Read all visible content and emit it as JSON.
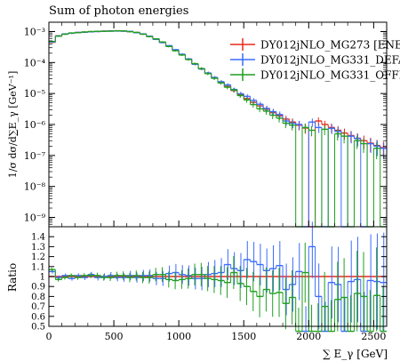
{
  "chart_data": {
    "type": "line",
    "title": "Sum of photon energies",
    "xlabel": "∑ E_γ [GeV]",
    "ylabel_main": "1/σ dσ/d∑E_γ [GeV⁻¹]",
    "ylabel_ratio": "Ratio",
    "x_range": [
      0,
      2600
    ],
    "y_range_main": [
      5e-10,
      0.002
    ],
    "y_scale_main": "log",
    "y_range_ratio": [
      0.5,
      1.5
    ],
    "x_ticks": [
      "0",
      "500",
      "1000",
      "1500",
      "2000",
      "2500"
    ],
    "y_ticks_main": [
      "10⁻³",
      "10⁻⁴",
      "10⁻⁵",
      "10⁻⁶",
      "10⁻⁷",
      "10⁻⁸",
      "10⁻⁹"
    ],
    "y_ticks_ratio": [
      "0.5",
      "0.6",
      "0.7",
      "0.8",
      "0.9",
      "1",
      "1.1",
      "1.2",
      "1.3",
      "1.4"
    ],
    "legend_position": "top-right",
    "bin_edges": [
      0,
      50,
      100,
      150,
      200,
      250,
      300,
      350,
      400,
      450,
      500,
      550,
      600,
      650,
      700,
      750,
      800,
      850,
      900,
      950,
      1000,
      1050,
      1100,
      1150,
      1200,
      1250,
      1300,
      1350,
      1400,
      1450,
      1500,
      1550,
      1600,
      1650,
      1700,
      1750,
      1800,
      1850,
      1900,
      1950,
      2000,
      2050,
      2100,
      2150,
      2200,
      2250,
      2300,
      2350,
      2400,
      2450,
      2500,
      2550,
      2600
    ],
    "series": [
      {
        "name": "DY012jNLO_MG273 [ENE",
        "color": "#e8291c",
        "values": [
          0.00045,
          0.00073,
          0.00083,
          0.00089,
          0.00093,
          0.00096,
          0.00099,
          0.00101,
          0.00103,
          0.00104,
          0.00105,
          0.00104,
          0.001,
          0.00093,
          0.00083,
          0.0007,
          0.00057,
          0.00045,
          0.00034,
          0.00025,
          0.00018,
          0.000128,
          9e-05,
          6.3e-05,
          4.5e-05,
          3.2e-05,
          2.3e-05,
          1.7e-05,
          1.25e-05,
          9.2e-06,
          6.9e-06,
          5.2e-06,
          4e-06,
          3.1e-06,
          2.4e-06,
          1.9e-06,
          1.5e-06,
          1.2e-06,
          9.5e-07,
          7.7e-07,
          2e-10,
          1.3e-06,
          1e-06,
          8e-07,
          6.5e-07,
          5.3e-07,
          4.4e-07,
          3.6e-07,
          3e-07,
          2.5e-07,
          2.1e-07,
          1.8e-07
        ]
      },
      {
        "name": "DY012jNLO_MG331_DEFA",
        "color": "#3a6bff",
        "values": [
          0.00046,
          0.00072,
          0.00084,
          0.00088,
          0.00094,
          0.00095,
          0.00098,
          0.001,
          0.00103,
          0.00105,
          0.00104,
          0.00103,
          0.00101,
          0.00092,
          0.00084,
          0.00071,
          0.00056,
          0.00044,
          0.00035,
          0.00026,
          0.000185,
          0.00013,
          8.8e-05,
          6.2e-05,
          4.6e-05,
          3.3e-05,
          2.4e-05,
          1.9e-05,
          1.35e-05,
          9.8e-06,
          8.1e-06,
          6e-06,
          4.5e-06,
          3.3e-06,
          2.6e-06,
          2.1e-06,
          1.3e-06,
          1.1e-06,
          1e-06,
          2e-10,
          1.2e-06,
          8e-07,
          2e-10,
          7.5e-07,
          6e-07,
          2e-10,
          4.2e-07,
          3.5e-07,
          2e-10,
          2.4e-07,
          2e-07,
          1.7e-07
        ]
      },
      {
        "name": "DY012jNLO_MG331_OFFF",
        "color": "#1f9e1f",
        "values": [
          0.00048,
          0.00071,
          0.00082,
          0.0009,
          0.00092,
          0.00097,
          0.001,
          0.00102,
          0.00102,
          0.00103,
          0.00106,
          0.00105,
          0.00099,
          0.00094,
          0.00082,
          0.00069,
          0.00058,
          0.00046,
          0.00033,
          0.00024,
          0.000175,
          0.000125,
          9.2e-05,
          6.4e-05,
          4.4e-05,
          3.1e-05,
          2.2e-05,
          1.6e-05,
          1.3e-05,
          8.6e-06,
          6.2e-06,
          4.4e-06,
          3.2e-06,
          2.7e-06,
          2e-06,
          1.6e-06,
          1.1e-06,
          9.5e-07,
          2e-10,
          8e-07,
          6.5e-07,
          2e-10,
          7e-07,
          2e-10,
          5e-07,
          4.2e-07,
          2e-10,
          3e-07,
          2.4e-07,
          2e-10,
          1.7e-07,
          2e-10
        ]
      }
    ],
    "ratio": [
      {
        "name": "DY012jNLO_MG273 [ENE",
        "values": [
          1,
          1,
          1,
          1,
          1,
          1,
          1,
          1,
          1,
          1,
          1,
          1,
          1,
          1,
          1,
          1,
          1,
          1,
          1,
          1,
          1,
          1,
          1,
          1,
          1,
          1,
          1,
          1,
          1,
          1,
          1,
          1,
          1,
          1,
          1,
          1,
          1,
          1,
          1,
          1,
          1,
          1,
          1,
          1,
          1,
          1,
          1,
          1,
          1,
          1,
          1,
          1
        ]
      },
      {
        "name": "DY012jNLO_MG331_DEFA",
        "values": [
          1.05,
          0.99,
          1.01,
          0.98,
          1.01,
          0.99,
          1.02,
          0.99,
          1.0,
          1.01,
          0.99,
          0.99,
          1.01,
          0.99,
          1.01,
          1.01,
          0.98,
          0.98,
          1.03,
          1.04,
          1.02,
          1.01,
          0.98,
          0.98,
          1.02,
          1.03,
          1.04,
          1.12,
          1.08,
          1.06,
          1.17,
          1.15,
          1.12,
          1.06,
          1.08,
          1.11,
          0.87,
          0.92,
          1.05,
          0.4,
          1.3,
          0.8,
          0.4,
          0.94,
          0.92,
          0.4,
          0.95,
          0.97,
          0.4,
          0.96,
          0.95,
          0.94
        ]
      },
      {
        "name": "DY012jNLO_MG331_OFFF",
        "values": [
          1.07,
          0.97,
          0.99,
          1.01,
          0.99,
          1.01,
          1.01,
          1.01,
          0.99,
          0.99,
          1.01,
          1.01,
          0.99,
          1.01,
          0.99,
          0.99,
          1.02,
          1.02,
          0.97,
          0.96,
          0.97,
          0.98,
          1.02,
          1.02,
          0.98,
          0.97,
          0.96,
          0.94,
          1.04,
          0.93,
          0.9,
          0.85,
          0.8,
          0.87,
          0.83,
          0.84,
          0.73,
          0.79,
          0.4,
          1.04,
          0.4,
          0.4,
          0.7,
          0.4,
          0.77,
          0.79,
          0.4,
          0.83,
          0.8,
          0.4,
          0.81,
          0.4
        ]
      }
    ]
  }
}
